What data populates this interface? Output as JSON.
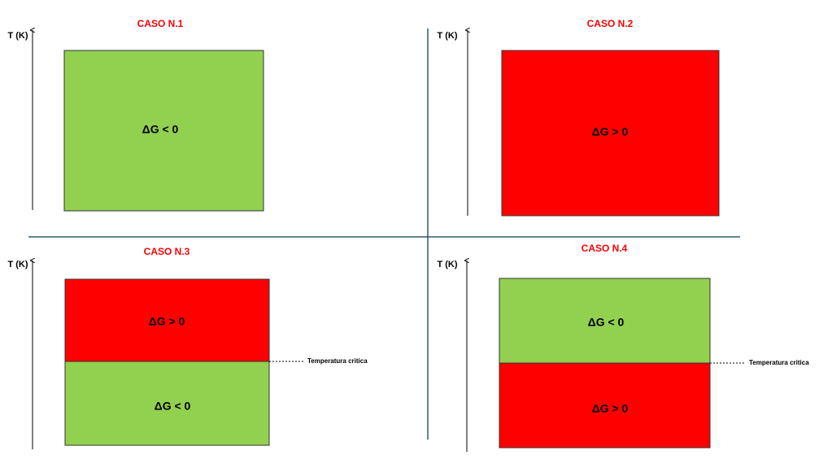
{
  "panels": [
    {
      "title": "CASO N.1",
      "axis_label": "T (K)",
      "regions": [
        {
          "label": "ΔG < 0"
        }
      ]
    },
    {
      "title": "CASO N.2",
      "axis_label": "T (K)",
      "regions": [
        {
          "label": "ΔG > 0"
        }
      ]
    },
    {
      "title": "CASO N.3",
      "axis_label": "T (K)",
      "regions": [
        {
          "label": "ΔG > 0"
        },
        {
          "label": "ΔG < 0"
        }
      ],
      "critical_label": "Temperatura critica"
    },
    {
      "title": "CASO N.4",
      "axis_label": "T (K)",
      "regions": [
        {
          "label": "ΔG < 0"
        },
        {
          "label": "ΔG > 0"
        }
      ],
      "critical_label": "Temperatura critica"
    }
  ]
}
